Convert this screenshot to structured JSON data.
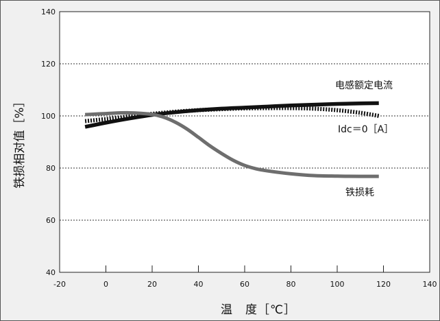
{
  "chart_data": {
    "type": "line",
    "xlabel": "温　度［℃］",
    "ylabel": "铁损相对值［%］",
    "xlim": [
      -20,
      140
    ],
    "ylim": [
      40,
      140
    ],
    "xticks": [
      -20,
      0,
      20,
      40,
      60,
      80,
      100,
      120,
      140
    ],
    "yticks": [
      40,
      60,
      80,
      100,
      120,
      140
    ],
    "grid": "horizontal dotted at 60, 80, 100, 120",
    "series": [
      {
        "name": "电感额定电流",
        "style": "solid-thick",
        "color": "#111111",
        "x": [
          -9,
          0,
          10,
          20,
          30,
          40,
          50,
          60,
          70,
          80,
          90,
          100,
          110,
          118
        ],
        "y": [
          95.8,
          97.4,
          99.0,
          100.4,
          101.4,
          102.2,
          102.8,
          103.2,
          103.6,
          104.0,
          104.3,
          104.6,
          104.8,
          104.9
        ]
      },
      {
        "name": "Idc＝0［A］",
        "style": "dotted-thick",
        "color": "#111111",
        "x": [
          -9,
          0,
          10,
          20,
          30,
          40,
          50,
          60,
          70,
          80,
          90,
          100,
          110,
          118
        ],
        "y": [
          98.0,
          98.8,
          99.8,
          100.8,
          101.6,
          102.2,
          102.6,
          102.9,
          103.0,
          103.0,
          102.8,
          102.2,
          101.2,
          100.0
        ]
      },
      {
        "name": "铁损耗",
        "style": "solid-gray",
        "color": "#6e6e6e",
        "x": [
          -9,
          0,
          10,
          20,
          25,
          30,
          35,
          40,
          45,
          50,
          55,
          60,
          65,
          70,
          80,
          90,
          100,
          110,
          118
        ],
        "y": [
          100.5,
          100.9,
          101.2,
          100.6,
          99.5,
          97.6,
          95.0,
          91.8,
          88.5,
          85.6,
          83.0,
          81.0,
          79.7,
          78.9,
          77.8,
          77.1,
          76.9,
          76.8,
          76.8
        ]
      }
    ],
    "annotations": [
      {
        "text": "电感额定电流",
        "series": 0
      },
      {
        "text": "Idc＝0［A］",
        "series": 1
      },
      {
        "text": "铁损耗",
        "series": 2
      }
    ]
  }
}
